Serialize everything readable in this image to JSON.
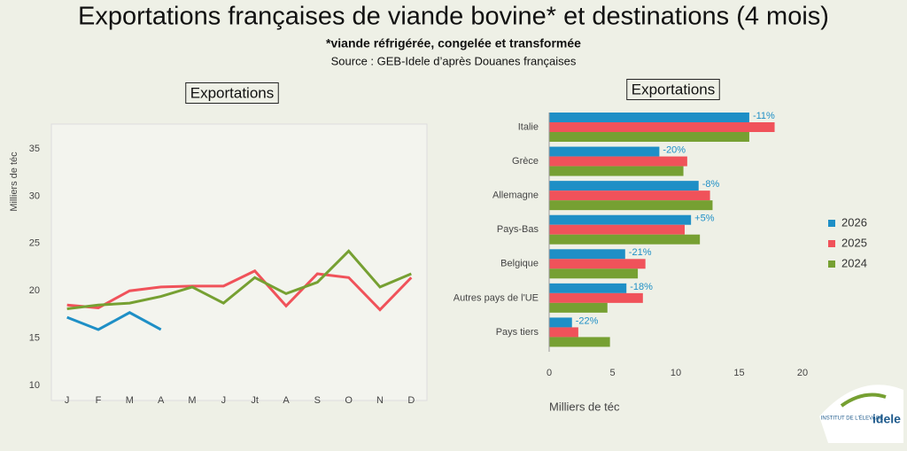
{
  "title": "Exportations françaises de viande bovine* et destinations (4 mois)",
  "subtitle": "*viande réfrigérée, congelée et transformée",
  "source": "Source : GEB-Idele d’après Douanes françaises",
  "logo": {
    "text": "INSTITUT DE L'ÉLEVAGE",
    "brand": "idele"
  },
  "chart_data": [
    {
      "type": "line",
      "title": "Exportations",
      "y_label": "Milliers de téc",
      "categories": [
        "J",
        "F",
        "M",
        "A",
        "M",
        "J",
        "Jt",
        "A",
        "S",
        "O",
        "N",
        "D"
      ],
      "series": [
        {
          "name": "2026",
          "color": "#1e8fc6",
          "values": [
            17.2,
            15.9,
            17.7,
            15.9,
            null,
            null,
            null,
            null,
            null,
            null,
            null,
            null
          ]
        },
        {
          "name": "2025",
          "color": "#f0525a",
          "values": [
            18.5,
            18.2,
            20.0,
            20.4,
            20.5,
            20.5,
            22.1,
            18.4,
            21.8,
            21.4,
            18.0,
            21.4
          ]
        },
        {
          "name": "2024",
          "color": "#76a032",
          "values": [
            18.1,
            18.5,
            18.7,
            19.4,
            20.4,
            18.7,
            21.4,
            19.7,
            20.9,
            24.2,
            20.4,
            21.8
          ]
        }
      ],
      "ylim": [
        10,
        35
      ],
      "yticks": [
        10,
        15,
        20,
        25,
        30,
        35
      ],
      "grid": false
    },
    {
      "type": "hbar",
      "title": "Exportations",
      "x_label": "Milliers de téc",
      "categories": [
        "Italie",
        "Grèce",
        "Allemagne",
        "Pays-Bas",
        "Belgique",
        "Autres pays de l'UE",
        "Pays tiers"
      ],
      "series": [
        {
          "name": "2026",
          "color": "#1e8fc6",
          "values": [
            15.8,
            8.7,
            11.8,
            11.2,
            6.0,
            6.1,
            1.8
          ]
        },
        {
          "name": "2025",
          "color": "#f0525a",
          "values": [
            17.8,
            10.9,
            12.7,
            10.7,
            7.6,
            7.4,
            2.3
          ]
        },
        {
          "name": "2024",
          "color": "#76a032",
          "values": [
            15.8,
            10.6,
            12.9,
            11.9,
            7.0,
            4.6,
            4.8
          ]
        }
      ],
      "annotations": [
        "-11%",
        "-20%",
        "-8%",
        "+5%",
        "-21%",
        "-18%",
        "-22%"
      ],
      "xlim": [
        0,
        20
      ],
      "xticks": [
        0,
        5,
        10,
        15,
        20
      ],
      "legend": "right"
    }
  ]
}
